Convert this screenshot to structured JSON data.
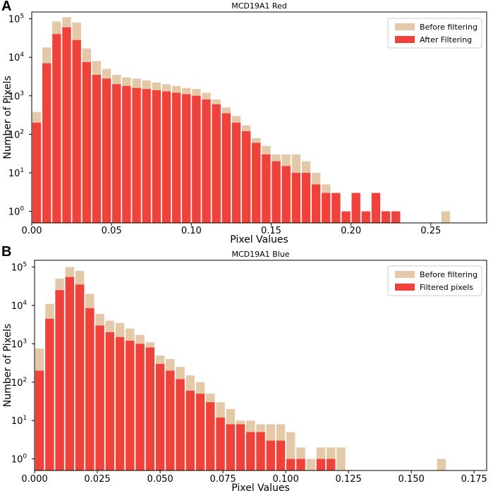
{
  "chart_data": [
    {
      "panel_label": "A",
      "type": "bar",
      "title": "MCD19A1 Red",
      "xlabel": "Pixel Values",
      "ylabel": "Number of Pixels",
      "xlim": [
        0.0,
        0.285
      ],
      "ylim": [
        0.5,
        150000
      ],
      "yscale": "log",
      "bin_width": 0.00625,
      "xticks": [
        {
          "value": 0.0,
          "label": "0.00"
        },
        {
          "value": 0.05,
          "label": "0.05"
        },
        {
          "value": 0.1,
          "label": "0.10"
        },
        {
          "value": 0.15,
          "label": "0.15"
        },
        {
          "value": 0.2,
          "label": "0.20"
        },
        {
          "value": 0.25,
          "label": "0.25"
        }
      ],
      "yticks": [
        {
          "value": 1,
          "base": "10",
          "exp": "0"
        },
        {
          "value": 10,
          "base": "10",
          "exp": "1"
        },
        {
          "value": 100,
          "base": "10",
          "exp": "2"
        },
        {
          "value": 1000,
          "base": "10",
          "exp": "3"
        },
        {
          "value": 10000,
          "base": "10",
          "exp": "4"
        },
        {
          "value": 100000,
          "base": "10",
          "exp": "5"
        }
      ],
      "legend_position": "top-right",
      "series": [
        {
          "name": "Before filtering",
          "color": "#e3c9a8",
          "x": [
            0.0,
            0.00625,
            0.0125,
            0.01875,
            0.025,
            0.03125,
            0.0375,
            0.04375,
            0.05,
            0.05625,
            0.0625,
            0.06875,
            0.075,
            0.08125,
            0.0875,
            0.09375,
            0.1,
            0.10625,
            0.1125,
            0.11875,
            0.125,
            0.13125,
            0.1375,
            0.14375,
            0.15,
            0.15625,
            0.1625,
            0.16875,
            0.175,
            0.18125,
            0.1875,
            0.25625
          ],
          "values": [
            380,
            18000,
            85000,
            110000,
            80000,
            17000,
            8000,
            5000,
            3500,
            3000,
            2800,
            2500,
            2200,
            2000,
            1800,
            1600,
            1500,
            1200,
            800,
            500,
            300,
            170,
            80,
            50,
            30,
            30,
            30,
            20,
            10,
            5,
            2,
            1
          ]
        },
        {
          "name": "After Filtering",
          "color": "#f0413b",
          "x": [
            0.0,
            0.00625,
            0.0125,
            0.01875,
            0.025,
            0.03125,
            0.0375,
            0.04375,
            0.05,
            0.05625,
            0.0625,
            0.06875,
            0.075,
            0.08125,
            0.0875,
            0.09375,
            0.1,
            0.10625,
            0.1125,
            0.11875,
            0.125,
            0.13125,
            0.1375,
            0.14375,
            0.15,
            0.15625,
            0.1625,
            0.16875,
            0.175,
            0.18125,
            0.1875,
            0.19375,
            0.2,
            0.20625,
            0.2125,
            0.21875,
            0.225
          ],
          "values": [
            200,
            7000,
            40000,
            60000,
            28000,
            7500,
            3500,
            2800,
            2000,
            1800,
            1600,
            1500,
            1400,
            1300,
            1200,
            1100,
            1000,
            800,
            600,
            350,
            200,
            120,
            60,
            30,
            20,
            15,
            10,
            10,
            5,
            3,
            3,
            1,
            3,
            1,
            3,
            1,
            1
          ]
        }
      ]
    },
    {
      "panel_label": "B",
      "type": "bar",
      "title": "MCD19A1 Blue",
      "xlabel": "Pixel Values",
      "ylabel": "Number of Pixels",
      "xlim": [
        0.0,
        0.18
      ],
      "ylim": [
        0.5,
        150000
      ],
      "yscale": "log",
      "bin_width": 0.004,
      "xticks": [
        {
          "value": 0.0,
          "label": "0.000"
        },
        {
          "value": 0.025,
          "label": "0.025"
        },
        {
          "value": 0.05,
          "label": "0.050"
        },
        {
          "value": 0.075,
          "label": "0.075"
        },
        {
          "value": 0.1,
          "label": "0.100"
        },
        {
          "value": 0.125,
          "label": "0.125"
        },
        {
          "value": 0.15,
          "label": "0.150"
        },
        {
          "value": 0.175,
          "label": "0.175"
        }
      ],
      "yticks": [
        {
          "value": 1,
          "base": "10",
          "exp": "0"
        },
        {
          "value": 10,
          "base": "10",
          "exp": "1"
        },
        {
          "value": 100,
          "base": "10",
          "exp": "2"
        },
        {
          "value": 1000,
          "base": "10",
          "exp": "3"
        },
        {
          "value": 10000,
          "base": "10",
          "exp": "4"
        },
        {
          "value": 100000,
          "base": "10",
          "exp": "5"
        }
      ],
      "legend_position": "top-right",
      "series": [
        {
          "name": "Before filtering",
          "color": "#e3c9a8",
          "x": [
            0.0,
            0.004,
            0.008,
            0.012,
            0.016,
            0.02,
            0.024,
            0.028,
            0.032,
            0.036,
            0.04,
            0.044,
            0.048,
            0.052,
            0.056,
            0.06,
            0.064,
            0.068,
            0.072,
            0.076,
            0.08,
            0.084,
            0.088,
            0.092,
            0.096,
            0.1,
            0.104,
            0.108,
            0.112,
            0.116,
            0.12,
            0.16
          ],
          "values": [
            750,
            11000,
            50000,
            100000,
            80000,
            20000,
            6000,
            4000,
            3500,
            2500,
            1700,
            1100,
            500,
            400,
            250,
            150,
            100,
            50,
            30,
            20,
            10,
            10,
            8,
            8,
            8,
            5,
            2,
            1,
            2,
            2,
            2,
            1
          ]
        },
        {
          "name": "Filtered pixels",
          "color": "#f0413b",
          "x": [
            0.0,
            0.004,
            0.008,
            0.012,
            0.016,
            0.02,
            0.024,
            0.028,
            0.032,
            0.036,
            0.04,
            0.044,
            0.048,
            0.052,
            0.056,
            0.06,
            0.064,
            0.068,
            0.072,
            0.076,
            0.08,
            0.084,
            0.088,
            0.092,
            0.096,
            0.1,
            0.104,
            0.112,
            0.116
          ],
          "values": [
            200,
            4500,
            25000,
            55000,
            35000,
            8500,
            3000,
            2000,
            1500,
            1200,
            1000,
            800,
            300,
            200,
            120,
            60,
            50,
            30,
            12,
            8,
            8,
            5,
            5,
            3,
            3,
            1,
            1,
            1,
            1
          ]
        }
      ]
    }
  ]
}
